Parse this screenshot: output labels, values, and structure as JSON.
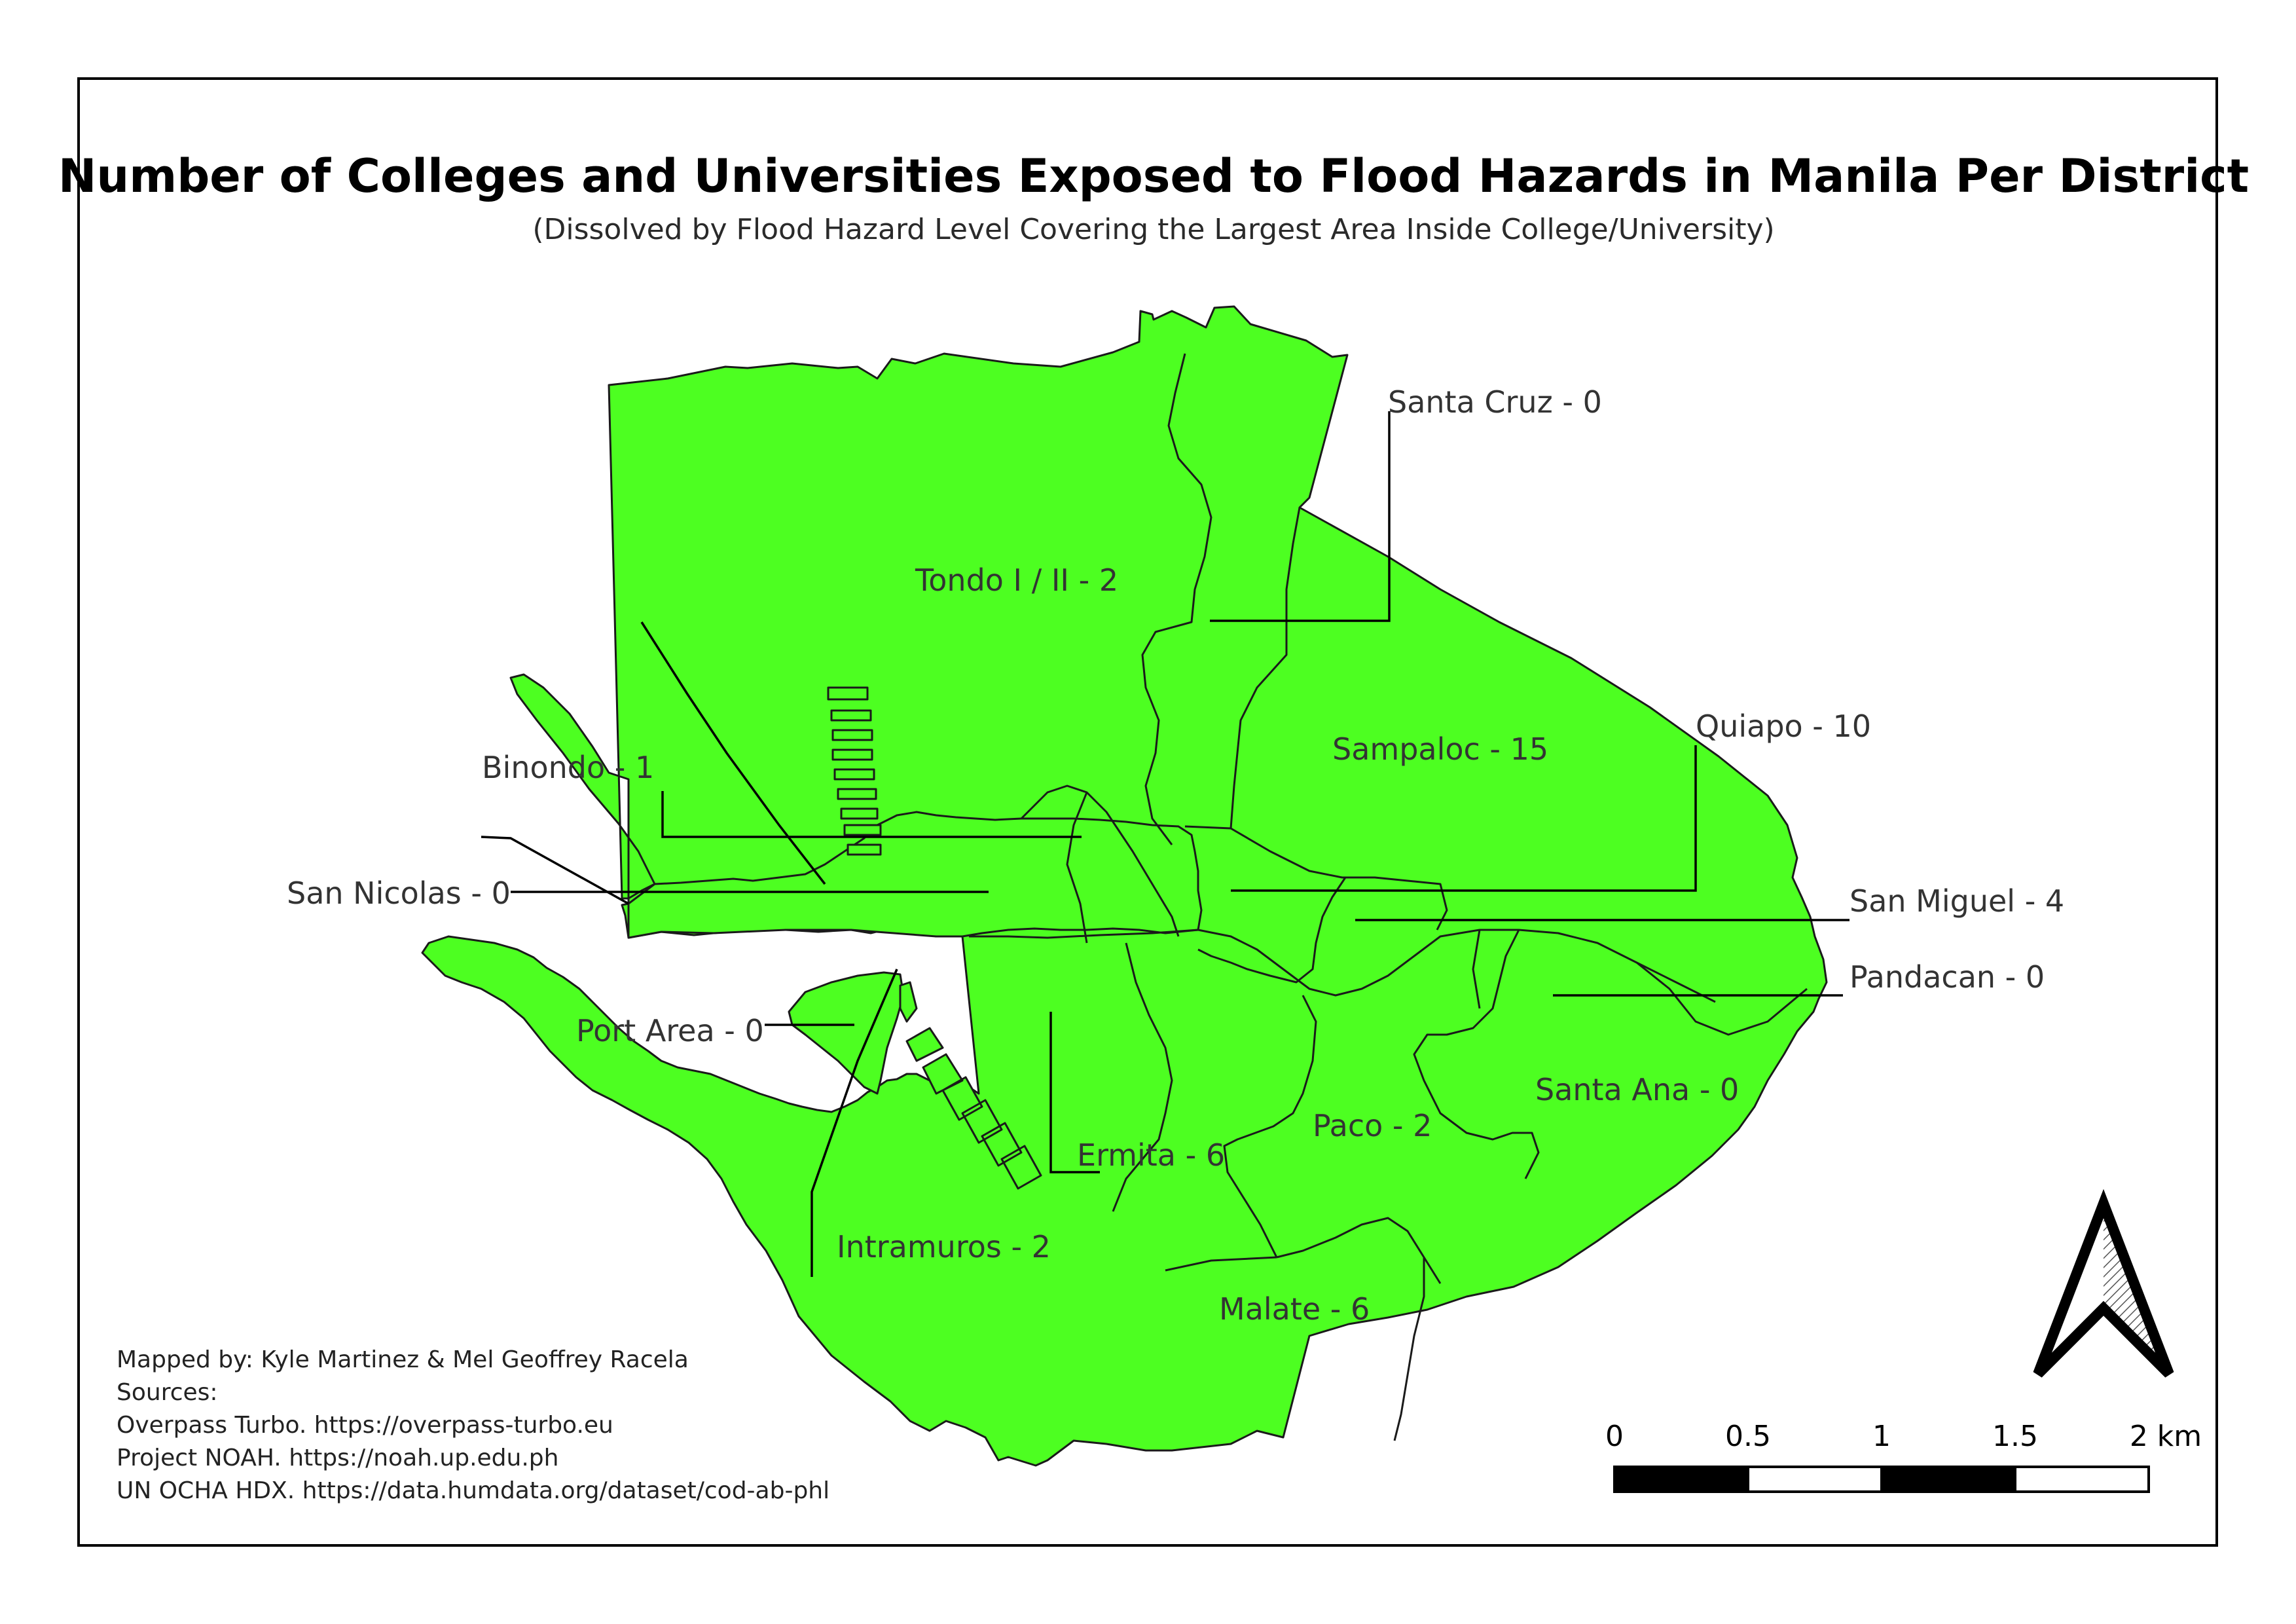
{
  "map": {
    "title": "Number of Colleges and Universities Exposed to Flood Hazards in Manila Per District",
    "subtitle": "(Dissolved by Flood Hazard Level Covering the Largest Area Inside College/University)",
    "fill_color": "#4dff21",
    "boundary_color": "#1a1a1a"
  },
  "districts": [
    {
      "label": "Santa Cruz - 0"
    },
    {
      "label": "Tondo I / II - 2"
    },
    {
      "label": "Quiapo - 10"
    },
    {
      "label": "Sampaloc - 15"
    },
    {
      "label": "Binondo - 1"
    },
    {
      "label": "San Miguel - 4"
    },
    {
      "label": "San Nicolas - 0"
    },
    {
      "label": "Pandacan - 0"
    },
    {
      "label": "Port Area - 0"
    },
    {
      "label": "Santa Ana - 0"
    },
    {
      "label": "Paco - 2"
    },
    {
      "label": "Ermita - 6"
    },
    {
      "label": "Intramuros - 2"
    },
    {
      "label": "Malate - 6"
    }
  ],
  "credits": {
    "mapped_by": "Mapped by: Kyle Martinez & Mel Geoffrey Racela",
    "sources_heading": "Sources:",
    "sources": [
      "Overpass Turbo. https://overpass-turbo.eu",
      "Project NOAH. https://noah.up.edu.ph",
      "UN OCHA HDX. https://data.humdata.org/dataset/cod-ab-phl"
    ]
  },
  "scale_bar": {
    "ticks": [
      "0",
      "0.5",
      "1",
      "1.5",
      "2 km"
    ]
  },
  "north_arrow": {
    "icon": "north-arrow-icon"
  }
}
